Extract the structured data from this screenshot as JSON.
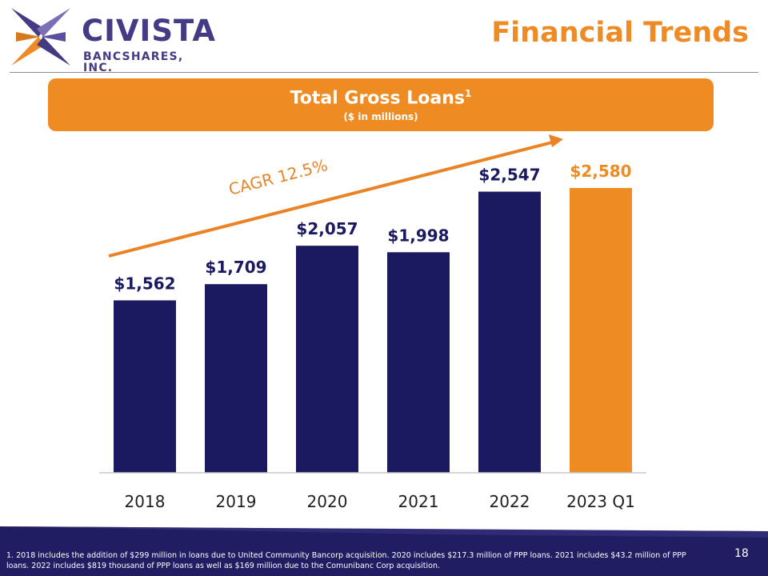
{
  "logo": {
    "name": "CIVISTA",
    "subtitle": "BANCSHARES, INC.",
    "colors": {
      "dark": "#433b83",
      "accent": "#ee8b24",
      "light": "#7b6fb5"
    }
  },
  "page_title": "Financial Trends",
  "banner": {
    "title": "Total Gross Loans",
    "title_superscript": "1",
    "subtitle": "($ in millions)"
  },
  "chart_data": {
    "type": "bar",
    "title": "Total Gross Loans",
    "unit_note": "($ in millions)",
    "categories": [
      "2018",
      "2019",
      "2020",
      "2021",
      "2022",
      "2023 Q1"
    ],
    "values": [
      1562,
      1709,
      2057,
      1998,
      2547,
      2580
    ],
    "labels": [
      "$1,562",
      "$1,709",
      "$2,057",
      "$1,998",
      "$2,547",
      "$2,580"
    ],
    "highlight_index": 5,
    "ylim": [
      0,
      2800
    ],
    "grid": false,
    "xlabel": "",
    "ylabel": "",
    "annotation": {
      "text": "CAGR 12.5%",
      "kind": "trend-arrow"
    },
    "colors": {
      "bar": "#1b1960",
      "highlight": "#ef8b23",
      "label_highlight": "#ef8b23",
      "arrow": "#e98325"
    }
  },
  "footnote": "1. 2018 includes the addition of $299 million in loans due to United Community Bancorp acquisition. 2020 includes $217.3 million of PPP loans. 2021 includes $43.2 million of PPP loans. 2022 includes $819 thousand of PPP loans as well as $169 million due to the Comunibanc Corp acquisition.",
  "page_number": "18",
  "colors": {
    "footer_band": "#201d63",
    "footer_band_light": "#3a3680",
    "rule": "#8d8d8d"
  }
}
